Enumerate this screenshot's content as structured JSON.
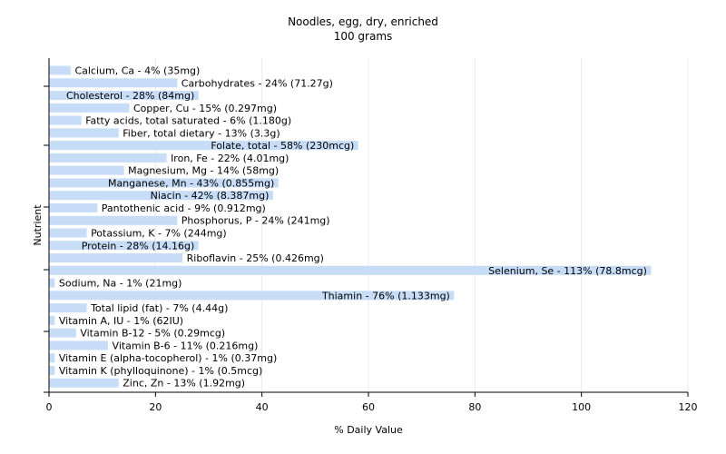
{
  "chart_data": {
    "type": "bar",
    "orientation": "horizontal",
    "title": "Noodles, egg, dry, enriched",
    "subtitle": "100 grams",
    "xlabel": "% Daily Value",
    "ylabel": "Nutrient",
    "xlim": [
      0,
      120
    ],
    "xticks": [
      "0",
      "20",
      "40",
      "60",
      "80",
      "100",
      "120"
    ],
    "grid": true,
    "colors": {
      "bar": "#c6dcf7",
      "grid": "#e9e9e9",
      "axis": "#000000"
    },
    "categories": [
      "Calcium, Ca",
      "Carbohydrates",
      "Cholesterol",
      "Copper, Cu",
      "Fatty acids, total saturated",
      "Fiber, total dietary",
      "Folate, total",
      "Iron, Fe",
      "Magnesium, Mg",
      "Manganese, Mn",
      "Niacin",
      "Pantothenic acid",
      "Phosphorus, P",
      "Potassium, K",
      "Protein",
      "Riboflavin",
      "Selenium, Se",
      "Sodium, Na",
      "Thiamin",
      "Total lipid (fat)",
      "Vitamin A, IU",
      "Vitamin B-12",
      "Vitamin B-6",
      "Vitamin E (alpha-tocopherol)",
      "Vitamin K (phylloquinone)",
      "Zinc, Zn"
    ],
    "values": [
      4,
      24,
      28,
      15,
      6,
      13,
      58,
      22,
      14,
      43,
      42,
      9,
      24,
      7,
      28,
      25,
      113,
      1,
      76,
      7,
      1,
      5,
      11,
      1,
      1,
      13
    ],
    "labels": [
      "Calcium, Ca - 4% (35mg)",
      "Carbohydrates - 24% (71.27g)",
      "Cholesterol - 28% (84mg)",
      "Copper, Cu - 15% (0.297mg)",
      "Fatty acids, total saturated - 6% (1.180g)",
      "Fiber, total dietary - 13% (3.3g)",
      "Folate, total - 58% (230mcg)",
      "Iron, Fe - 22% (4.01mg)",
      "Magnesium, Mg - 14% (58mg)",
      "Manganese, Mn - 43% (0.855mg)",
      "Niacin - 42% (8.387mg)",
      "Pantothenic acid - 9% (0.912mg)",
      "Phosphorus, P - 24% (241mg)",
      "Potassium, K - 7% (244mg)",
      "Protein - 28% (14.16g)",
      "Riboflavin - 25% (0.426mg)",
      "Selenium, Se - 113% (78.8mcg)",
      "Sodium, Na - 1% (21mg)",
      "Thiamin - 76% (1.133mg)",
      "Total lipid (fat) - 7% (4.44g)",
      "Vitamin A, IU - 1% (62IU)",
      "Vitamin B-12 - 5% (0.29mcg)",
      "Vitamin B-6 - 11% (0.216mg)",
      "Vitamin E (alpha-tocopherol) - 1% (0.37mg)",
      "Vitamin K (phylloquinone) - 1% (0.5mcg)",
      "Zinc, Zn - 13% (1.92mg)"
    ]
  }
}
